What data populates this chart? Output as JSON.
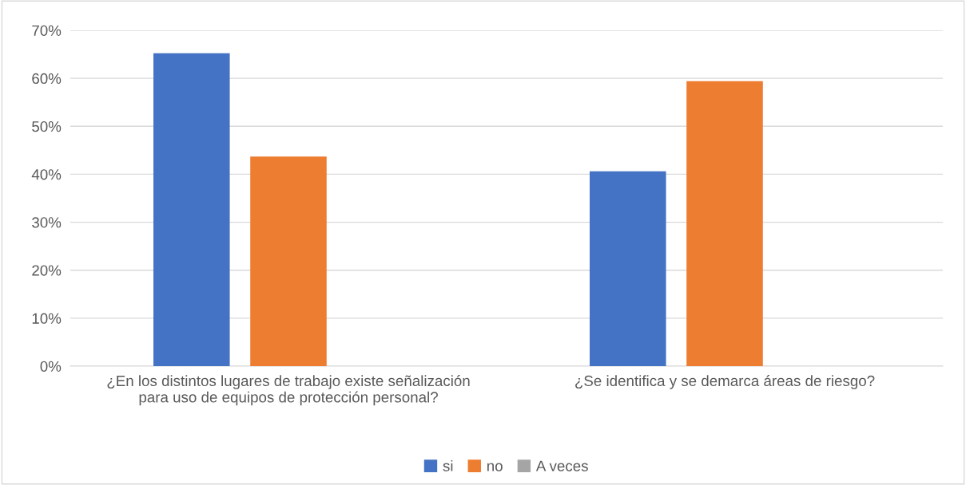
{
  "chart_data": {
    "type": "bar",
    "categories": [
      "¿En los distintos lugares de trabajo existe señalización\npara uso de equipos de protección personal?",
      "¿Se identifica y se demarca áreas de riesgo?"
    ],
    "series": [
      {
        "name": "si",
        "color": "#4472c4",
        "values": [
          65.2,
          40.6
        ]
      },
      {
        "name": "no",
        "color": "#ed7d31",
        "values": [
          43.7,
          59.4
        ]
      },
      {
        "name": "A veces",
        "color": "#a5a5a5",
        "values": [
          0,
          0
        ]
      }
    ],
    "ylim": [
      0,
      70
    ],
    "yticks": [
      {
        "value": 0,
        "label": "0%"
      },
      {
        "value": 10,
        "label": "10%"
      },
      {
        "value": 20,
        "label": "20%"
      },
      {
        "value": 30,
        "label": "30%"
      },
      {
        "value": 40,
        "label": "40%"
      },
      {
        "value": 50,
        "label": "50%"
      },
      {
        "value": 60,
        "label": "60%"
      },
      {
        "value": 70,
        "label": "70%"
      }
    ],
    "grid": "y",
    "legend": "bottom"
  }
}
